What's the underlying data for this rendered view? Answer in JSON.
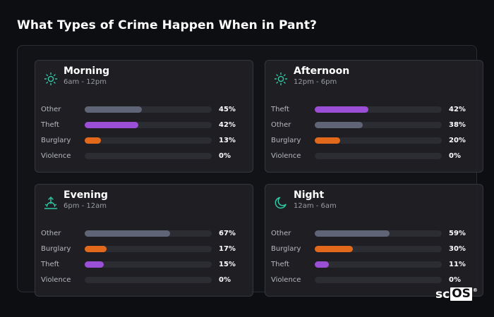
{
  "title": "What Types of Crime Happen When in Pant?",
  "colors": {
    "Other": "#5f6577",
    "Theft": "#9b4fd6",
    "Burglary": "#e2691b",
    "Violence": "#d23c3c",
    "icon": "#2fc9a6"
  },
  "cards": [
    {
      "name": "Morning",
      "range": "6am - 12pm",
      "icon": "sun-icon",
      "rows": [
        {
          "label": "Other",
          "value": 45,
          "pct": "45%"
        },
        {
          "label": "Theft",
          "value": 42,
          "pct": "42%"
        },
        {
          "label": "Burglary",
          "value": 13,
          "pct": "13%"
        },
        {
          "label": "Violence",
          "value": 0,
          "pct": "0%"
        }
      ]
    },
    {
      "name": "Afternoon",
      "range": "12pm - 6pm",
      "icon": "sun-icon",
      "rows": [
        {
          "label": "Theft",
          "value": 42,
          "pct": "42%"
        },
        {
          "label": "Other",
          "value": 38,
          "pct": "38%"
        },
        {
          "label": "Burglary",
          "value": 20,
          "pct": "20%"
        },
        {
          "label": "Violence",
          "value": 0,
          "pct": "0%"
        }
      ]
    },
    {
      "name": "Evening",
      "range": "6pm - 12am",
      "icon": "sunset-icon",
      "rows": [
        {
          "label": "Other",
          "value": 67,
          "pct": "67%"
        },
        {
          "label": "Burglary",
          "value": 17,
          "pct": "17%"
        },
        {
          "label": "Theft",
          "value": 15,
          "pct": "15%"
        },
        {
          "label": "Violence",
          "value": 0,
          "pct": "0%"
        }
      ]
    },
    {
      "name": "Night",
      "range": "12am - 6am",
      "icon": "moon-icon",
      "rows": [
        {
          "label": "Other",
          "value": 59,
          "pct": "59%"
        },
        {
          "label": "Burglary",
          "value": 30,
          "pct": "30%"
        },
        {
          "label": "Theft",
          "value": 11,
          "pct": "11%"
        },
        {
          "label": "Violence",
          "value": 0,
          "pct": "0%"
        }
      ]
    }
  ],
  "logo": {
    "sc": "sc",
    "os": "OS",
    "mark": "®"
  }
}
